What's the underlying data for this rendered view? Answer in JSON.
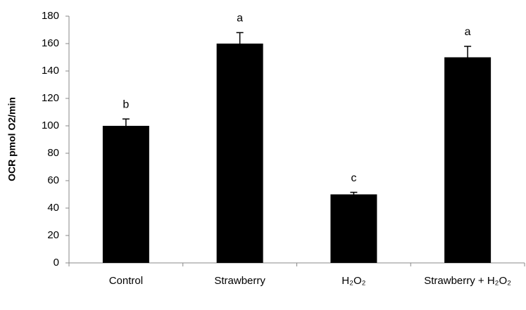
{
  "chart_data": {
    "type": "bar",
    "ylabel": "OCR pmol O2/min",
    "categories": [
      "Control",
      "Strawberry",
      "H₂O₂",
      "Strawberry + H₂O₂"
    ],
    "values": [
      100,
      160,
      50,
      150
    ],
    "errors": [
      5,
      8,
      1.5,
      8
    ],
    "significance_letters": [
      "b",
      "a",
      "c",
      "a"
    ],
    "color": "#000000",
    "ylim": [
      0,
      180
    ],
    "yticks": [
      0,
      20,
      40,
      60,
      80,
      100,
      120,
      140,
      160,
      180
    ],
    "grid": false
  }
}
